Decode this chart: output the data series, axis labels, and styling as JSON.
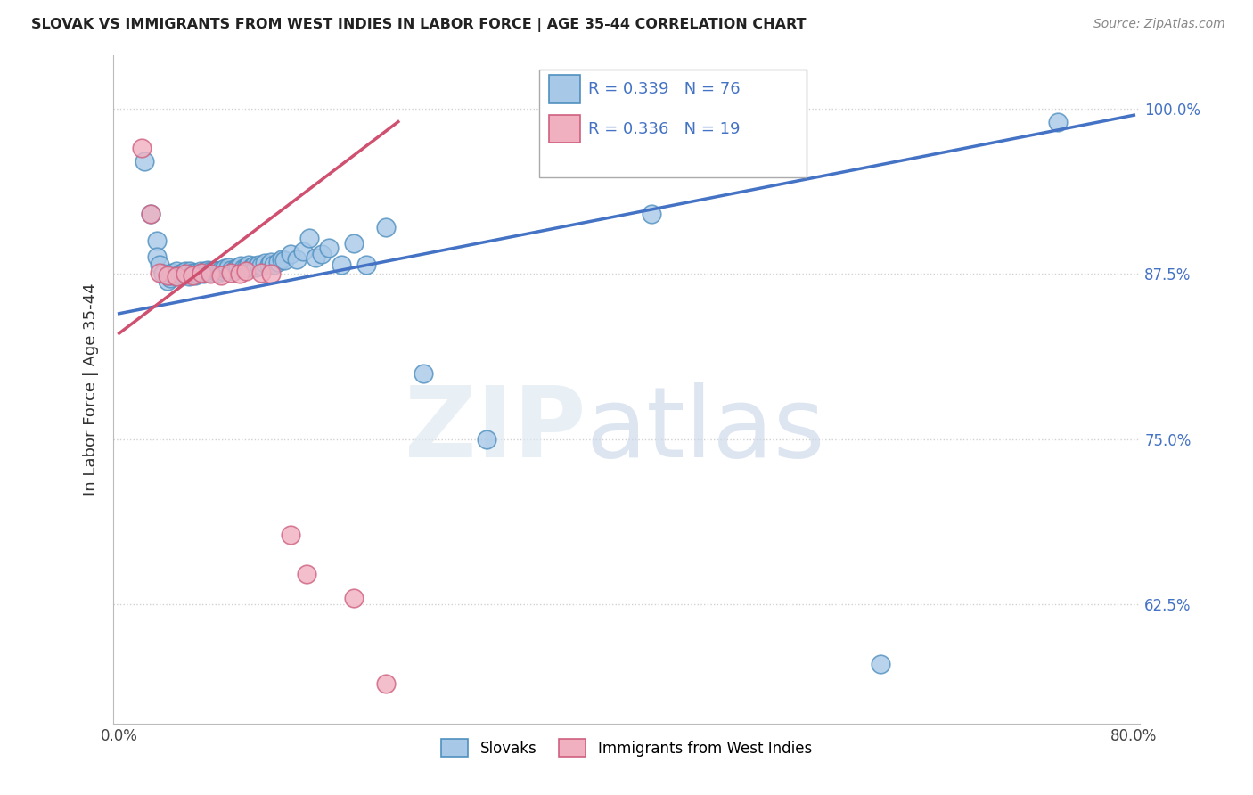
{
  "title": "SLOVAK VS IMMIGRANTS FROM WEST INDIES IN LABOR FORCE | AGE 35-44 CORRELATION CHART",
  "source": "Source: ZipAtlas.com",
  "ylabel": "In Labor Force | Age 35-44",
  "xlim": [
    -0.005,
    0.805
  ],
  "ylim": [
    0.535,
    1.04
  ],
  "xtick_vals": [
    0.0,
    0.2,
    0.4,
    0.6,
    0.8
  ],
  "xtick_labels": [
    "0.0%",
    "",
    "",
    "",
    "80.0%"
  ],
  "ytick_vals": [
    0.625,
    0.75,
    0.875,
    1.0
  ],
  "ytick_labels": [
    "62.5%",
    "75.0%",
    "87.5%",
    "100.0%"
  ],
  "legend_r_blue": "R = 0.339",
  "legend_n_blue": "N = 76",
  "legend_r_pink": "R = 0.336",
  "legend_n_pink": "N = 19",
  "blue_dot_color": "#a8c8e8",
  "blue_edge_color": "#5090c0",
  "pink_dot_color": "#f0b0c0",
  "pink_edge_color": "#d06080",
  "blue_line_color": "#4472c4",
  "pink_line_color": "#d05070",
  "slovaks_x": [
    0.02,
    0.025,
    0.03,
    0.03,
    0.032,
    0.035,
    0.038,
    0.04,
    0.04,
    0.042,
    0.044,
    0.045,
    0.046,
    0.048,
    0.05,
    0.05,
    0.052,
    0.054,
    0.055,
    0.056,
    0.058,
    0.06,
    0.06,
    0.062,
    0.064,
    0.065,
    0.066,
    0.068,
    0.07,
    0.07,
    0.072,
    0.074,
    0.075,
    0.076,
    0.078,
    0.08,
    0.082,
    0.083,
    0.085,
    0.086,
    0.088,
    0.09,
    0.092,
    0.094,
    0.096,
    0.098,
    0.1,
    0.102,
    0.104,
    0.106,
    0.108,
    0.11,
    0.112,
    0.115,
    0.118,
    0.12,
    0.122,
    0.125,
    0.128,
    0.13,
    0.135,
    0.14,
    0.145,
    0.15,
    0.155,
    0.16,
    0.165,
    0.175,
    0.185,
    0.195,
    0.21,
    0.24,
    0.29,
    0.42,
    0.6,
    0.74
  ],
  "slovaks_y": [
    0.96,
    0.92,
    0.9,
    0.888,
    0.882,
    0.875,
    0.87,
    0.872,
    0.874,
    0.876,
    0.874,
    0.877,
    0.873,
    0.875,
    0.876,
    0.874,
    0.877,
    0.875,
    0.873,
    0.877,
    0.876,
    0.874,
    0.876,
    0.875,
    0.877,
    0.876,
    0.875,
    0.877,
    0.876,
    0.878,
    0.877,
    0.876,
    0.878,
    0.877,
    0.876,
    0.878,
    0.877,
    0.879,
    0.878,
    0.88,
    0.878,
    0.877,
    0.879,
    0.88,
    0.881,
    0.879,
    0.88,
    0.882,
    0.88,
    0.881,
    0.88,
    0.882,
    0.881,
    0.883,
    0.882,
    0.884,
    0.882,
    0.884,
    0.886,
    0.885,
    0.89,
    0.886,
    0.892,
    0.902,
    0.887,
    0.89,
    0.895,
    0.882,
    0.898,
    0.882,
    0.91,
    0.8,
    0.75,
    0.92,
    0.58,
    0.99
  ],
  "west_indies_x": [
    0.018,
    0.025,
    0.032,
    0.038,
    0.045,
    0.052,
    0.058,
    0.065,
    0.072,
    0.08,
    0.088,
    0.095,
    0.1,
    0.112,
    0.12,
    0.135,
    0.148,
    0.185,
    0.21
  ],
  "west_indies_y": [
    0.97,
    0.92,
    0.876,
    0.874,
    0.873,
    0.875,
    0.874,
    0.876,
    0.875,
    0.874,
    0.876,
    0.875,
    0.877,
    0.876,
    0.875,
    0.678,
    0.648,
    0.63,
    0.565
  ],
  "blue_trend_x0": 0.0,
  "blue_trend_x1": 0.8,
  "blue_trend_y0": 0.845,
  "blue_trend_y1": 0.995,
  "pink_trend_x0": 0.0,
  "pink_trend_x1": 0.22,
  "pink_trend_y0": 0.83,
  "pink_trend_y1": 0.99
}
